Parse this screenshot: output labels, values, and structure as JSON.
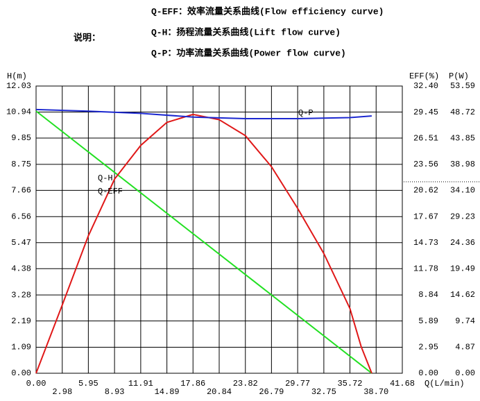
{
  "chart_data": {
    "type": "line",
    "legend_title": "说明：",
    "legend_items": [
      "Q-EFF：效率流量关系曲线(Flow efficiency curve)",
      "Q-H：扬程流量关系曲线(Lift flow curve)",
      "Q-P：功率流量关系曲线(Power flow curve)"
    ],
    "y_label": "H(m)",
    "y2_label": "EFF(%)",
    "y3_label": "P(W)",
    "x_label": "Q(L/min)",
    "xlim": [
      0,
      41.68
    ],
    "xticks": [
      {
        "value": 0,
        "label": "0.00"
      },
      2.98,
      5.95,
      8.93,
      11.91,
      14.89,
      17.86,
      20.84,
      23.82,
      26.79,
      29.77,
      32.75,
      35.72,
      {
        "value": 38.7,
        "label": "38.70"
      },
      41.68
    ],
    "ylim": [
      0,
      12.03
    ],
    "yticks": [
      {
        "value": 0,
        "label": "0.00"
      },
      1.09,
      2.19,
      3.28,
      4.38,
      5.47,
      6.56,
      7.66,
      8.75,
      9.85,
      10.94,
      12.03
    ],
    "y2lim": [
      0,
      32.4
    ],
    "y2ticks": [
      {
        "value": 0,
        "label": "0.00"
      },
      2.95,
      5.89,
      8.84,
      11.78,
      14.73,
      17.67,
      20.62,
      23.56,
      26.51,
      29.45,
      {
        "value": 32.4,
        "label": "32.40"
      }
    ],
    "y3lim": [
      0,
      53.59
    ],
    "y3ticks": [
      {
        "value": 0,
        "label": "0.00"
      },
      4.87,
      9.74,
      14.62,
      19.49,
      24.36,
      29.23,
      {
        "value": 34.1,
        "label": "34.10"
      },
      38.98,
      43.85,
      48.72,
      53.59
    ],
    "grid": true,
    "series": [
      {
        "name": "Q-H",
        "color": "#22e022",
        "x": [
          0,
          38.2
        ],
        "values": [
          10.98,
          0
        ]
      },
      {
        "name": "Q-EFF",
        "color": "#e01818",
        "axis": "y2",
        "x": [
          0,
          2.98,
          5.95,
          8.93,
          11.91,
          14.89,
          17.86,
          20.84,
          23.82,
          26.79,
          29.77,
          32.75,
          35.72,
          37.0,
          38.2
        ],
        "values": [
          0,
          7.7,
          15.5,
          21.9,
          25.7,
          28.3,
          29.2,
          28.6,
          26.8,
          23.3,
          18.6,
          13.5,
          7.3,
          3.0,
          0
        ]
      },
      {
        "name": "Q-P",
        "color": "#1c28d0",
        "axis": "y3",
        "x": [
          0,
          5.95,
          11.91,
          17.86,
          23.82,
          29.77,
          35.72,
          38.2
        ],
        "values": [
          49.2,
          48.9,
          48.5,
          47.8,
          47.5,
          47.5,
          47.7,
          48.0
        ]
      }
    ]
  }
}
